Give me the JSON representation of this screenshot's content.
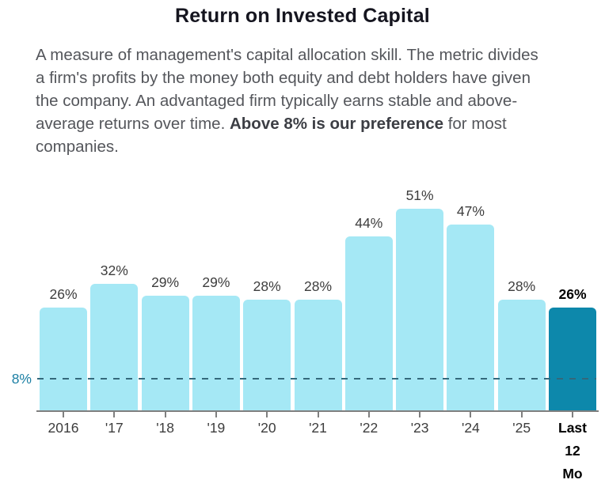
{
  "title": "Return on Invested Capital",
  "description": {
    "before": "A measure of management's capital allocation skill. The metric divides a firm's profits by the money both equity and debt holders have given the company. An advantaged firm typically earns stable and above-average returns over time. ",
    "bold": "Above 8% is our preference",
    "after": " for most companies."
  },
  "chart_data": {
    "type": "bar",
    "title": "Return on Invested Capital",
    "categories": [
      "2016",
      "'17",
      "'18",
      "'19",
      "'20",
      "'21",
      "'22",
      "'23",
      "'24",
      "'25",
      "Last 12 Mo"
    ],
    "values": [
      26,
      32,
      29,
      29,
      28,
      28,
      44,
      51,
      47,
      28,
      26
    ],
    "value_labels": [
      "26%",
      "32%",
      "29%",
      "29%",
      "28%",
      "28%",
      "44%",
      "51%",
      "47%",
      "28%",
      "26%"
    ],
    "highlight_index": 10,
    "reference_line": {
      "value": 8,
      "label": "8%"
    },
    "xlabel": "",
    "ylabel": "",
    "ylim": [
      0,
      56
    ],
    "grid": false,
    "legend": "none",
    "colors": {
      "bar": "#a5e8f5",
      "highlight_bar": "#0d88ab",
      "reference_line": "#33687b",
      "reference_label": "#1b7fa4"
    }
  }
}
